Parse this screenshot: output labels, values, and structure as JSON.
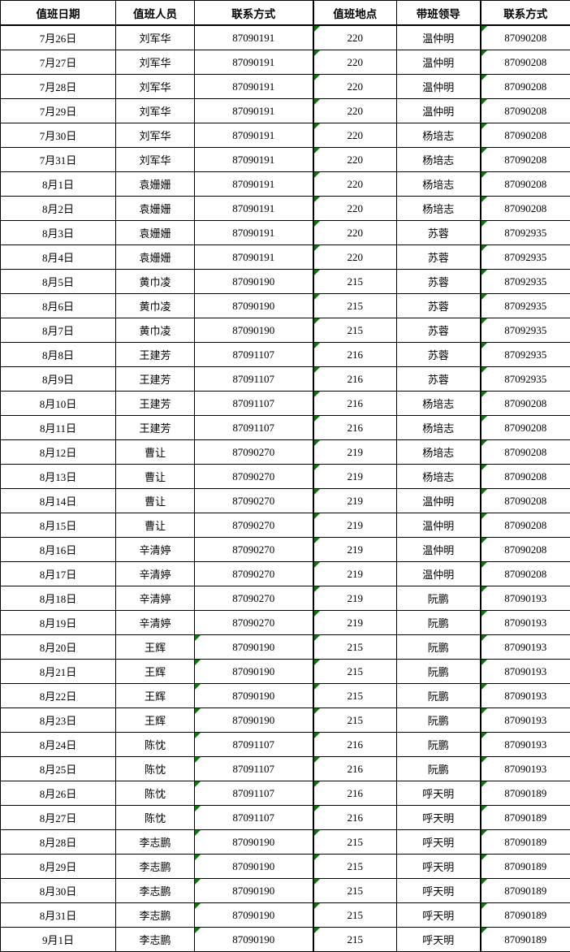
{
  "table": {
    "flag_color": "#008000",
    "flag_icon_meaning": "green corner triangle marker",
    "headers": [
      "值班日期",
      "值班人员",
      "联系方式",
      "值班地点",
      "带班领导",
      "联系方式"
    ],
    "rows": [
      {
        "date": "7月26日",
        "person": "刘军华",
        "phone": "87090191",
        "location": "220",
        "leader": "温仲明",
        "leader_phone": "87090208",
        "flags": [
          "location",
          "leader_phone"
        ]
      },
      {
        "date": "7月27日",
        "person": "刘军华",
        "phone": "87090191",
        "location": "220",
        "leader": "温仲明",
        "leader_phone": "87090208",
        "flags": [
          "location",
          "leader_phone"
        ]
      },
      {
        "date": "7月28日",
        "person": "刘军华",
        "phone": "87090191",
        "location": "220",
        "leader": "温仲明",
        "leader_phone": "87090208",
        "flags": [
          "location",
          "leader_phone"
        ]
      },
      {
        "date": "7月29日",
        "person": "刘军华",
        "phone": "87090191",
        "location": "220",
        "leader": "温仲明",
        "leader_phone": "87090208",
        "flags": [
          "location",
          "leader_phone"
        ]
      },
      {
        "date": "7月30日",
        "person": "刘军华",
        "phone": "87090191",
        "location": "220",
        "leader": "杨培志",
        "leader_phone": "87090208",
        "flags": [
          "location",
          "leader_phone"
        ]
      },
      {
        "date": "7月31日",
        "person": "刘军华",
        "phone": "87090191",
        "location": "220",
        "leader": "杨培志",
        "leader_phone": "87090208",
        "flags": [
          "location",
          "leader_phone"
        ]
      },
      {
        "date": "8月1日",
        "person": "袁姗姗",
        "phone": "87090191",
        "location": "220",
        "leader": "杨培志",
        "leader_phone": "87090208",
        "flags": [
          "location",
          "leader_phone"
        ]
      },
      {
        "date": "8月2日",
        "person": "袁姗姗",
        "phone": "87090191",
        "location": "220",
        "leader": "杨培志",
        "leader_phone": "87090208",
        "flags": [
          "location",
          "leader_phone"
        ]
      },
      {
        "date": "8月3日",
        "person": "袁姗姗",
        "phone": "87090191",
        "location": "220",
        "leader": "苏蓉",
        "leader_phone": "87092935",
        "flags": [
          "location",
          "leader_phone"
        ]
      },
      {
        "date": "8月4日",
        "person": "袁姗姗",
        "phone": "87090191",
        "location": "220",
        "leader": "苏蓉",
        "leader_phone": "87092935",
        "flags": [
          "location",
          "leader_phone"
        ]
      },
      {
        "date": "8月5日",
        "person": "黄巾凌",
        "phone": "87090190",
        "location": "215",
        "leader": "苏蓉",
        "leader_phone": "87092935",
        "flags": [
          "location",
          "leader_phone"
        ]
      },
      {
        "date": "8月6日",
        "person": "黄巾凌",
        "phone": "87090190",
        "location": "215",
        "leader": "苏蓉",
        "leader_phone": "87092935",
        "flags": [
          "location",
          "leader_phone"
        ]
      },
      {
        "date": "8月7日",
        "person": "黄巾凌",
        "phone": "87090190",
        "location": "215",
        "leader": "苏蓉",
        "leader_phone": "87092935",
        "flags": [
          "location",
          "leader_phone"
        ]
      },
      {
        "date": "8月8日",
        "person": "王建芳",
        "phone": "87091107",
        "location": "216",
        "leader": "苏蓉",
        "leader_phone": "87092935",
        "flags": [
          "location",
          "leader_phone"
        ]
      },
      {
        "date": "8月9日",
        "person": "王建芳",
        "phone": "87091107",
        "location": "216",
        "leader": "苏蓉",
        "leader_phone": "87092935",
        "flags": [
          "location",
          "leader_phone"
        ]
      },
      {
        "date": "8月10日",
        "person": "王建芳",
        "phone": "87091107",
        "location": "216",
        "leader": "杨培志",
        "leader_phone": "87090208",
        "flags": [
          "location",
          "leader_phone"
        ]
      },
      {
        "date": "8月11日",
        "person": "王建芳",
        "phone": "87091107",
        "location": "216",
        "leader": "杨培志",
        "leader_phone": "87090208",
        "flags": [
          "location",
          "leader_phone"
        ]
      },
      {
        "date": "8月12日",
        "person": "曹让",
        "phone": "87090270",
        "location": "219",
        "leader": "杨培志",
        "leader_phone": "87090208",
        "flags": [
          "location",
          "leader_phone"
        ]
      },
      {
        "date": "8月13日",
        "person": "曹让",
        "phone": "87090270",
        "location": "219",
        "leader": "杨培志",
        "leader_phone": "87090208",
        "flags": [
          "location",
          "leader_phone"
        ]
      },
      {
        "date": "8月14日",
        "person": "曹让",
        "phone": "87090270",
        "location": "219",
        "leader": "温仲明",
        "leader_phone": "87090208",
        "flags": [
          "location",
          "leader_phone"
        ]
      },
      {
        "date": "8月15日",
        "person": "曹让",
        "phone": "87090270",
        "location": "219",
        "leader": "温仲明",
        "leader_phone": "87090208",
        "flags": [
          "location",
          "leader_phone"
        ]
      },
      {
        "date": "8月16日",
        "person": "辛清婷",
        "phone": "87090270",
        "location": "219",
        "leader": "温仲明",
        "leader_phone": "87090208",
        "flags": [
          "location",
          "leader_phone"
        ]
      },
      {
        "date": "8月17日",
        "person": "辛清婷",
        "phone": "87090270",
        "location": "219",
        "leader": "温仲明",
        "leader_phone": "87090208",
        "flags": [
          "location",
          "leader_phone"
        ]
      },
      {
        "date": "8月18日",
        "person": "辛清婷",
        "phone": "87090270",
        "location": "219",
        "leader": "阮鹏",
        "leader_phone": "87090193",
        "flags": [
          "location",
          "leader_phone"
        ]
      },
      {
        "date": "8月19日",
        "person": "辛清婷",
        "phone": "87090270",
        "location": "219",
        "leader": "阮鹏",
        "leader_phone": "87090193",
        "flags": [
          "location",
          "leader_phone"
        ]
      },
      {
        "date": "8月20日",
        "person": "王辉",
        "phone": "87090190",
        "location": "215",
        "leader": "阮鹏",
        "leader_phone": "87090193",
        "flags": [
          "phone",
          "location",
          "leader_phone"
        ]
      },
      {
        "date": "8月21日",
        "person": "王辉",
        "phone": "87090190",
        "location": "215",
        "leader": "阮鹏",
        "leader_phone": "87090193",
        "flags": [
          "phone",
          "location",
          "leader_phone"
        ]
      },
      {
        "date": "8月22日",
        "person": "王辉",
        "phone": "87090190",
        "location": "215",
        "leader": "阮鹏",
        "leader_phone": "87090193",
        "flags": [
          "phone",
          "location",
          "leader_phone"
        ]
      },
      {
        "date": "8月23日",
        "person": "王辉",
        "phone": "87090190",
        "location": "215",
        "leader": "阮鹏",
        "leader_phone": "87090193",
        "flags": [
          "phone",
          "location",
          "leader_phone"
        ]
      },
      {
        "date": "8月24日",
        "person": "陈忱",
        "phone": "87091107",
        "location": "216",
        "leader": "阮鹏",
        "leader_phone": "87090193",
        "flags": [
          "phone",
          "location",
          "leader_phone"
        ]
      },
      {
        "date": "8月25日",
        "person": "陈忱",
        "phone": "87091107",
        "location": "216",
        "leader": "阮鹏",
        "leader_phone": "87090193",
        "flags": [
          "phone",
          "location",
          "leader_phone"
        ]
      },
      {
        "date": "8月26日",
        "person": "陈忱",
        "phone": "87091107",
        "location": "216",
        "leader": "呼天明",
        "leader_phone": "87090189",
        "flags": [
          "phone",
          "location",
          "leader_phone"
        ]
      },
      {
        "date": "8月27日",
        "person": "陈忱",
        "phone": "87091107",
        "location": "216",
        "leader": "呼天明",
        "leader_phone": "87090189",
        "flags": [
          "phone",
          "location",
          "leader_phone"
        ]
      },
      {
        "date": "8月28日",
        "person": "李志鹏",
        "phone": "87090190",
        "location": "215",
        "leader": "呼天明",
        "leader_phone": "87090189",
        "flags": [
          "phone",
          "location",
          "leader_phone"
        ]
      },
      {
        "date": "8月29日",
        "person": "李志鹏",
        "phone": "87090190",
        "location": "215",
        "leader": "呼天明",
        "leader_phone": "87090189",
        "flags": [
          "phone",
          "location",
          "leader_phone"
        ]
      },
      {
        "date": "8月30日",
        "person": "李志鹏",
        "phone": "87090190",
        "location": "215",
        "leader": "呼天明",
        "leader_phone": "87090189",
        "flags": [
          "phone",
          "location",
          "leader_phone"
        ]
      },
      {
        "date": "8月31日",
        "person": "李志鹏",
        "phone": "87090190",
        "location": "215",
        "leader": "呼天明",
        "leader_phone": "87090189",
        "flags": [
          "phone",
          "location",
          "leader_phone"
        ]
      },
      {
        "date": "9月1日",
        "person": "李志鹏",
        "phone": "87090190",
        "location": "215",
        "leader": "呼天明",
        "leader_phone": "87090189",
        "flags": [
          "phone",
          "location",
          "leader_phone"
        ]
      }
    ]
  }
}
